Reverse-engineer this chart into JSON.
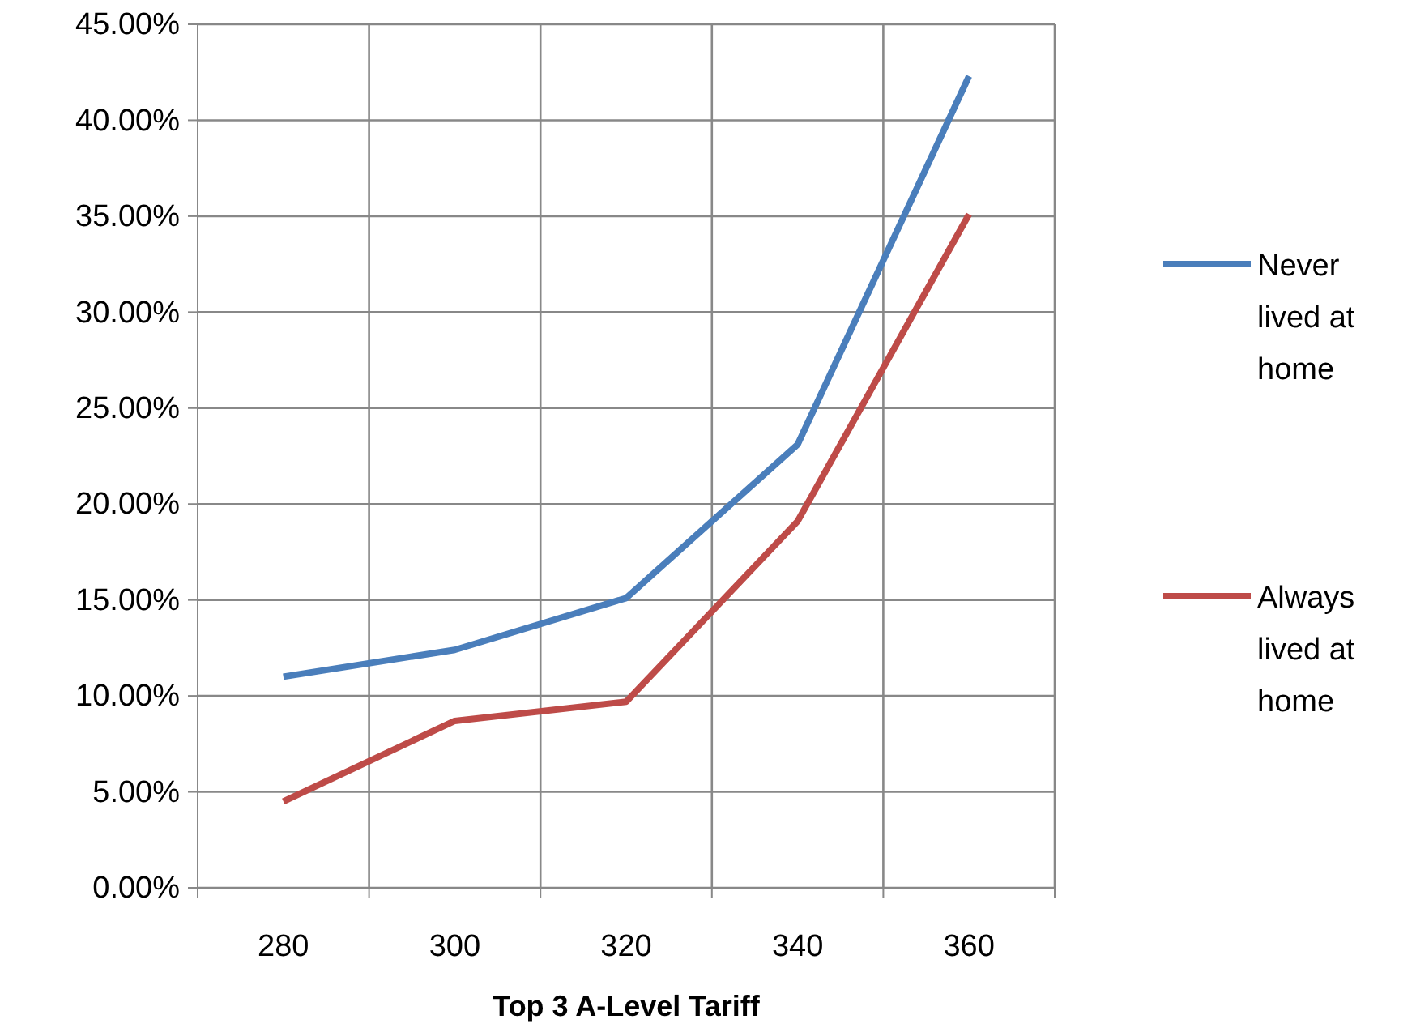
{
  "chart_data": {
    "type": "line",
    "xlabel": "Top 3 A-Level Tariff",
    "categories": [
      "280",
      "300",
      "320",
      "340",
      "360"
    ],
    "series": [
      {
        "name": "Never lived at home",
        "color": "#4a7ebb",
        "values": [
          11.0,
          12.4,
          15.1,
          23.1,
          42.3
        ]
      },
      {
        "name": "Always lived at home",
        "color": "#be4b48",
        "values": [
          4.5,
          8.7,
          9.7,
          19.1,
          35.1
        ]
      }
    ],
    "ylim": [
      0,
      45
    ],
    "yticks": [
      {
        "value": 0,
        "label": "0.00%"
      },
      {
        "value": 5,
        "label": "5.00%"
      },
      {
        "value": 10,
        "label": "10.00%"
      },
      {
        "value": 15,
        "label": "15.00%"
      },
      {
        "value": 20,
        "label": "20.00%"
      },
      {
        "value": 25,
        "label": "25.00%"
      },
      {
        "value": 30,
        "label": "30.00%"
      },
      {
        "value": 35,
        "label": "35.00%"
      },
      {
        "value": 40,
        "label": "40.00%"
      },
      {
        "value": 45,
        "label": "45.00%"
      }
    ],
    "grid": true,
    "legend": "right",
    "marker": "none",
    "line_style": "solid"
  }
}
